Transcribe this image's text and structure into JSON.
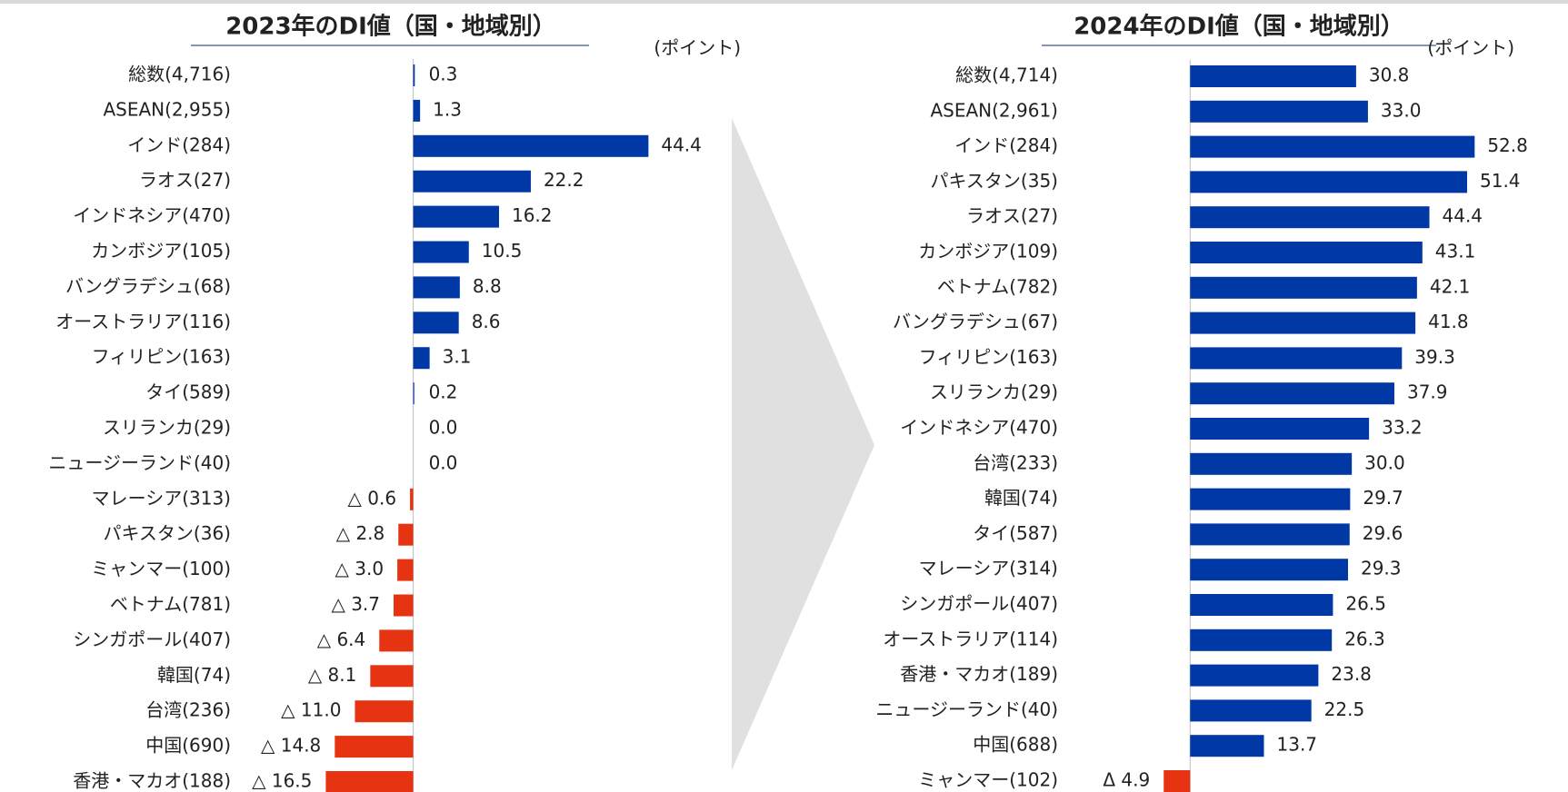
{
  "chart_data": [
    {
      "type": "barh",
      "title": "2023年のDI値（国・地域別）",
      "unit_label": "(ポイント)",
      "categories": [
        "総数(4,716)",
        "ASEAN(2,955)",
        "インド(284)",
        "ラオス(27)",
        "インドネシア(470)",
        "カンボジア(105)",
        "バングラデシュ(68)",
        "オーストラリア(116)",
        "フィリピン(163)",
        "タイ(589)",
        "スリランカ(29)",
        "ニュージーランド(40)",
        "マレーシア(313)",
        "パキスタン(36)",
        "ミャンマー(100)",
        "ベトナム(781)",
        "シンガポール(407)",
        "韓国(74)",
        "台湾(236)",
        "中国(690)",
        "香港・マカオ(188)"
      ],
      "values": [
        0.3,
        1.3,
        44.4,
        22.2,
        16.2,
        10.5,
        8.8,
        8.6,
        3.1,
        0.2,
        0.0,
        0.0,
        -0.6,
        -2.8,
        -3.0,
        -3.7,
        -6.4,
        -8.1,
        -11.0,
        -14.8,
        -16.5
      ],
      "value_labels": [
        "0.3",
        "1.3",
        "44.4",
        "22.2",
        "16.2",
        "10.5",
        "8.8",
        "8.6",
        "3.1",
        "0.2",
        "0.0",
        "0.0",
        "△ 0.6",
        "△ 2.8",
        "△ 3.0",
        "△ 3.7",
        "△ 6.4",
        "△ 8.1",
        "△ 11.0",
        "△ 14.8",
        "△ 16.5"
      ],
      "xlim": [
        -20,
        50
      ],
      "color": "#0039a6",
      "negative_color": "#e63312"
    },
    {
      "type": "barh",
      "title": "2024年のDI値（国・地域別）",
      "unit_label": "(ポイント)",
      "categories": [
        "総数(4,714)",
        "ASEAN(2,961)",
        "インド(284)",
        "パキスタン(35)",
        "ラオス(27)",
        "カンボジア(109)",
        "ベトナム(782)",
        "バングラデシュ(67)",
        "フィリピン(163)",
        "スリランカ(29)",
        "インドネシア(470)",
        "台湾(233)",
        "韓国(74)",
        "タイ(587)",
        "マレーシア(314)",
        "シンガポール(407)",
        "オーストラリア(114)",
        "香港・マカオ(189)",
        "ニュージーランド(40)",
        "中国(688)",
        "ミャンマー(102)"
      ],
      "values": [
        30.8,
        33.0,
        52.8,
        51.4,
        44.4,
        43.1,
        42.1,
        41.8,
        39.3,
        37.9,
        33.2,
        30.0,
        29.7,
        29.6,
        29.3,
        26.5,
        26.3,
        23.8,
        22.5,
        13.7,
        -4.9
      ],
      "value_labels": [
        "30.8",
        "33.0",
        "52.8",
        "51.4",
        "44.4",
        "43.1",
        "42.1",
        "41.8",
        "39.3",
        "37.9",
        "33.2",
        "30.0",
        "29.7",
        "29.6",
        "29.3",
        "26.5",
        "26.3",
        "23.8",
        "22.5",
        "13.7",
        "Δ 4.9"
      ],
      "xlim": [
        -10,
        60
      ],
      "color": "#0039a6",
      "negative_color": "#e63312"
    }
  ]
}
